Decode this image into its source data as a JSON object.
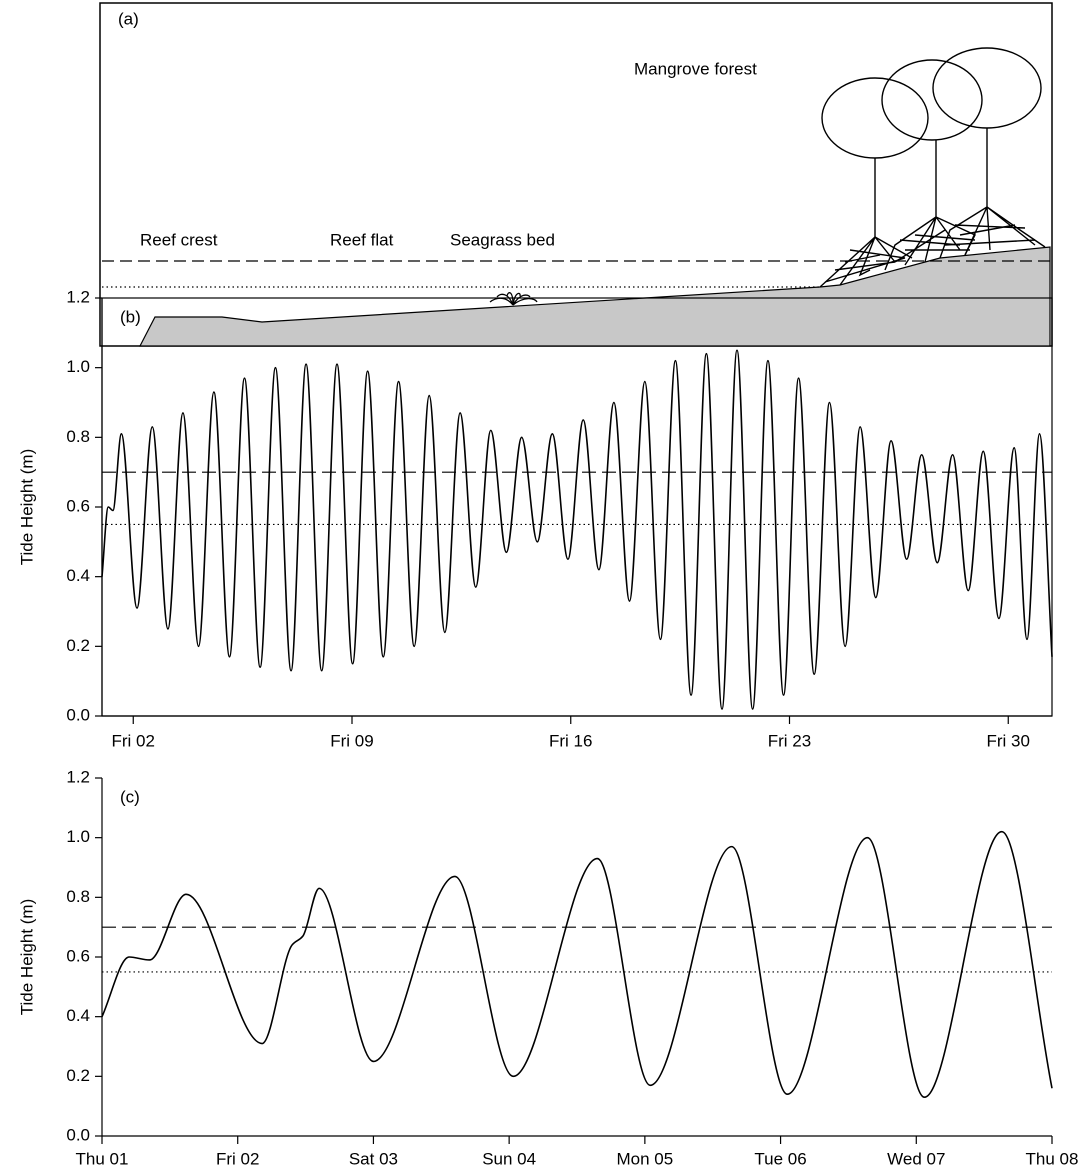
{
  "diagram": {
    "panel_label": "(a)",
    "labels": [
      "Mangrove forest",
      "Reef crest",
      "Reef flat",
      "Seagrass bed"
    ]
  },
  "chart_data": [
    {
      "type": "line",
      "panel_label": "(b)",
      "ylabel": "Tide Height (m)",
      "frame": true,
      "color": "#000000",
      "xlim": [
        1,
        31.4
      ],
      "xticks": [
        {
          "value": 2,
          "label": "Fri 02"
        },
        {
          "value": 9,
          "label": "Fri 09"
        },
        {
          "value": 16,
          "label": "Fri 16"
        },
        {
          "value": 23,
          "label": "Fri 23"
        },
        {
          "value": 30,
          "label": "Fri 30"
        }
      ],
      "ylim": [
        0,
        1.2
      ],
      "yticks": [
        {
          "value": 0,
          "label": "0.0"
        },
        0.2,
        0.4,
        0.6,
        0.8,
        {
          "value": 1,
          "label": "1.0"
        },
        1.2
      ],
      "hlines": [
        {
          "value": 0.7,
          "style": "dashed"
        },
        {
          "value": 0.55,
          "style": "dotted"
        }
      ],
      "x": [
        1,
        1.2,
        1.35,
        1.62,
        2.12,
        2.61,
        3.11,
        3.59,
        4.09,
        4.58,
        5.08,
        5.56,
        6.06,
        6.55,
        7.05,
        7.53,
        8.03,
        8.52,
        9.02,
        9.5,
        10,
        10.49,
        10.99,
        11.47,
        11.97,
        12.46,
        12.96,
        13.44,
        13.94,
        14.43,
        14.93,
        15.41,
        15.91,
        16.4,
        16.9,
        17.38,
        17.88,
        18.37,
        18.87,
        19.35,
        19.85,
        20.34,
        20.84,
        21.32,
        21.82,
        22.31,
        22.81,
        23.29,
        23.79,
        24.28,
        24.78,
        25.26,
        25.76,
        26.25,
        26.75,
        27.23,
        27.73,
        28.22,
        28.72,
        29.2,
        29.7,
        30.19,
        30.6,
        31.0,
        31.4
      ],
      "values": [
        0.4,
        0.6,
        0.59,
        0.81,
        0.31,
        0.83,
        0.25,
        0.87,
        0.2,
        0.93,
        0.17,
        0.97,
        0.14,
        1.0,
        0.13,
        1.01,
        0.13,
        1.01,
        0.15,
        0.99,
        0.17,
        0.96,
        0.2,
        0.92,
        0.24,
        0.87,
        0.37,
        0.82,
        0.47,
        0.8,
        0.5,
        0.81,
        0.45,
        0.85,
        0.42,
        0.9,
        0.33,
        0.96,
        0.22,
        1.02,
        0.06,
        1.04,
        0.02,
        1.05,
        0.02,
        1.02,
        0.06,
        0.97,
        0.12,
        0.9,
        0.2,
        0.83,
        0.34,
        0.79,
        0.45,
        0.75,
        0.44,
        0.75,
        0.36,
        0.76,
        0.28,
        0.77,
        0.22,
        0.81,
        0.17
      ]
    },
    {
      "type": "line",
      "panel_label": "(c)",
      "ylabel": "Tide Height (m)",
      "frame": false,
      "color": "#000000",
      "xlim": [
        1,
        8
      ],
      "xticks": [
        {
          "value": 1,
          "label": "Thu 01"
        },
        {
          "value": 2,
          "label": "Fri 02"
        },
        {
          "value": 3,
          "label": "Sat 03"
        },
        {
          "value": 4,
          "label": "Sun 04"
        },
        {
          "value": 5,
          "label": "Mon 05"
        },
        {
          "value": 6,
          "label": "Tue 06"
        },
        {
          "value": 7,
          "label": "Wed 07"
        },
        {
          "value": 8,
          "label": "Thu 08"
        }
      ],
      "ylim": [
        0,
        1.2
      ],
      "yticks": [
        {
          "value": 0,
          "label": "0.0"
        },
        0.2,
        0.4,
        0.6,
        0.8,
        {
          "value": 1,
          "label": "1.0"
        },
        1.2
      ],
      "hlines": [
        {
          "value": 0.7,
          "style": "dashed"
        },
        {
          "value": 0.55,
          "style": "dotted"
        }
      ],
      "x": [
        1,
        1.2,
        1.35,
        1.62,
        2.18,
        2.4,
        2.48,
        2.6,
        3.0,
        3.6,
        4.03,
        4.65,
        5.04,
        5.64,
        6.05,
        6.64,
        7.06,
        7.63,
        8.0
      ],
      "values": [
        0.4,
        0.6,
        0.59,
        0.81,
        0.31,
        0.64,
        0.67,
        0.83,
        0.25,
        0.87,
        0.2,
        0.93,
        0.17,
        0.97,
        0.14,
        1.0,
        0.13,
        1.02,
        0.16
      ]
    }
  ]
}
